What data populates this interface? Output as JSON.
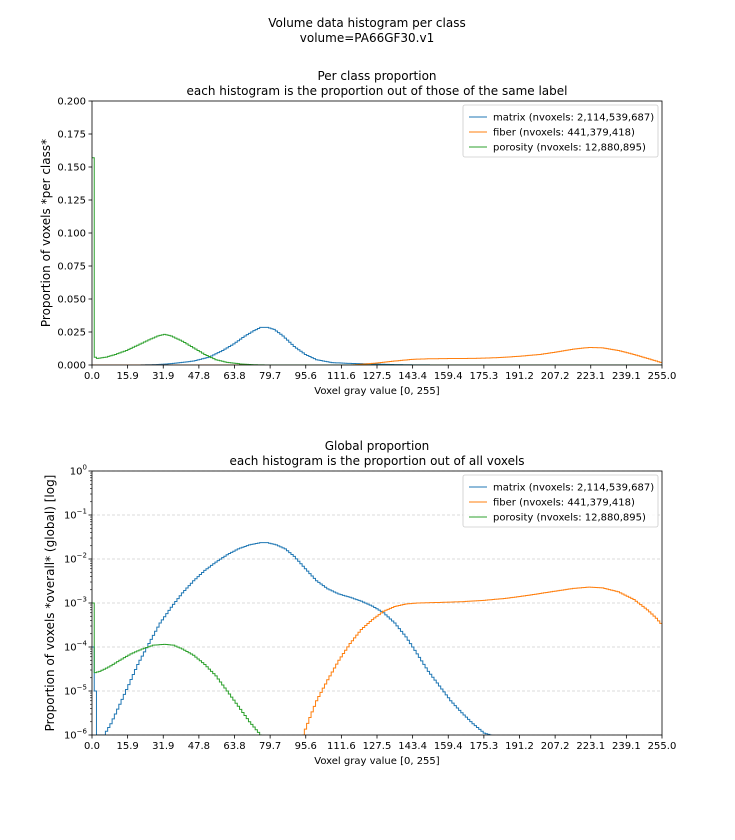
{
  "figure": {
    "suptitle_line1": "Volume data histogram per class",
    "suptitle_line2": "volume=PA66GF30.v1"
  },
  "colors": {
    "matrix": "#1f77b4",
    "fiber": "#ff7f0e",
    "porosity": "#2ca02c"
  },
  "chart_data": [
    {
      "type": "line",
      "title_line1": "Per class proportion",
      "title_line2": "each histogram is the proportion out of those of the same label",
      "xlabel": "Voxel gray value [0, 255]",
      "ylabel": "Proportion of voxels *per class*",
      "xlim": [
        0,
        255
      ],
      "ylim": [
        0,
        0.2
      ],
      "yscale": "linear",
      "grid": false,
      "legend": "top-right",
      "xticks": [
        "0.0",
        "15.9",
        "31.9",
        "47.8",
        "63.8",
        "79.7",
        "95.6",
        "111.6",
        "127.5",
        "143.4",
        "159.4",
        "175.3",
        "191.2",
        "207.2",
        "223.1",
        "239.1",
        "255.0"
      ],
      "yticks": [
        "0.000",
        "0.025",
        "0.050",
        "0.075",
        "0.100",
        "0.125",
        "0.150",
        "0.175",
        "0.200"
      ],
      "series": [
        {
          "name": "matrix (nvoxels: 2,114,539,687)",
          "key": "matrix",
          "points": [
            [
              0,
              0
            ],
            [
              20,
              0
            ],
            [
              28,
              0.0003
            ],
            [
              35,
              0.001
            ],
            [
              45,
              0.003
            ],
            [
              52,
              0.006
            ],
            [
              58,
              0.011
            ],
            [
              63,
              0.016
            ],
            [
              68,
              0.022
            ],
            [
              72,
              0.026
            ],
            [
              75,
              0.0285
            ],
            [
              78,
              0.0285
            ],
            [
              81,
              0.027
            ],
            [
              85,
              0.022
            ],
            [
              90,
              0.014
            ],
            [
              95,
              0.008
            ],
            [
              100,
              0.004
            ],
            [
              107,
              0.0018
            ],
            [
              115,
              0.0012
            ],
            [
              125,
              0.0008
            ],
            [
              135,
              0.0003
            ],
            [
              145,
              0.0001
            ],
            [
              155,
              0
            ],
            [
              255,
              0
            ]
          ]
        },
        {
          "name": "fiber (nvoxels: 441,379,418)",
          "key": "fiber",
          "points": [
            [
              0,
              0
            ],
            [
              115,
              0
            ],
            [
              118,
              0.0003
            ],
            [
              122,
              0.0008
            ],
            [
              127,
              0.0015
            ],
            [
              132,
              0.0025
            ],
            [
              138,
              0.0035
            ],
            [
              143,
              0.0043
            ],
            [
              150,
              0.0047
            ],
            [
              160,
              0.0049
            ],
            [
              170,
              0.005
            ],
            [
              180,
              0.0055
            ],
            [
              190,
              0.0065
            ],
            [
              200,
              0.008
            ],
            [
              208,
              0.01
            ],
            [
              215,
              0.012
            ],
            [
              222,
              0.0133
            ],
            [
              228,
              0.013
            ],
            [
              235,
              0.011
            ],
            [
              242,
              0.008
            ],
            [
              248,
              0.005
            ],
            [
              252,
              0.003
            ],
            [
              255,
              0.0015
            ]
          ]
        },
        {
          "name": "porosity (nvoxels: 12,880,895)",
          "key": "porosity",
          "points": [
            [
              0,
              0.157
            ],
            [
              0.6,
              0.157
            ],
            [
              0.8,
              0.006
            ],
            [
              2,
              0.005
            ],
            [
              6,
              0.006
            ],
            [
              10,
              0.008
            ],
            [
              15,
              0.011
            ],
            [
              20,
              0.015
            ],
            [
              25,
              0.019
            ],
            [
              29,
              0.022
            ],
            [
              32,
              0.0232
            ],
            [
              35,
              0.022
            ],
            [
              40,
              0.018
            ],
            [
              45,
              0.013
            ],
            [
              50,
              0.008
            ],
            [
              55,
              0.004
            ],
            [
              60,
              0.002
            ],
            [
              66,
              0.0008
            ],
            [
              72,
              0.0002
            ],
            [
              76,
              5e-05
            ],
            [
              80,
              0
            ],
            [
              255,
              0
            ]
          ]
        }
      ]
    },
    {
      "type": "line",
      "title_line1": "Global proportion",
      "title_line2": "each histogram is the proportion out of all voxels",
      "xlabel": "Voxel gray value [0, 255]",
      "ylabel": "Proportion of voxels *overall* (global) [log]",
      "xlim": [
        0,
        255
      ],
      "ylim": [
        1e-06,
        1
      ],
      "yscale": "log",
      "grid": true,
      "legend": "top-right",
      "xticks": [
        "0.0",
        "15.9",
        "31.9",
        "47.8",
        "63.8",
        "79.7",
        "95.6",
        "111.6",
        "127.5",
        "143.4",
        "159.4",
        "175.3",
        "191.2",
        "207.2",
        "223.1",
        "239.1",
        "255.0"
      ],
      "yticks_exp": [
        "0",
        "-1",
        "-2",
        "-3",
        "-4",
        "-5",
        "-6"
      ],
      "ytick_base": "10",
      "series": [
        {
          "name": "matrix (nvoxels: 2,114,539,687)",
          "key": "matrix",
          "points": [
            [
              0,
              0.0001
            ],
            [
              1,
              1e-05
            ],
            [
              2,
              1e-06
            ],
            [
              5,
              1e-06
            ],
            [
              8,
              1.8e-06
            ],
            [
              12,
              5e-06
            ],
            [
              16,
              1.4e-05
            ],
            [
              20,
              4e-05
            ],
            [
              25,
              0.00012
            ],
            [
              30,
              0.00035
            ],
            [
              35,
              0.0008
            ],
            [
              40,
              0.0017
            ],
            [
              45,
              0.0032
            ],
            [
              50,
              0.0055
            ],
            [
              55,
              0.0085
            ],
            [
              60,
              0.0125
            ],
            [
              65,
              0.017
            ],
            [
              70,
              0.021
            ],
            [
              75,
              0.0235
            ],
            [
              78,
              0.0235
            ],
            [
              82,
              0.021
            ],
            [
              86,
              0.017
            ],
            [
              90,
              0.0115
            ],
            [
              95,
              0.006
            ],
            [
              100,
              0.0032
            ],
            [
              105,
              0.0021
            ],
            [
              110,
              0.0016
            ],
            [
              115,
              0.00135
            ],
            [
              120,
              0.0011
            ],
            [
              125,
              0.00085
            ],
            [
              130,
              0.0006
            ],
            [
              135,
              0.00035
            ],
            [
              140,
              0.00017
            ],
            [
              145,
              7e-05
            ],
            [
              150,
              2.8e-05
            ],
            [
              155,
              1.3e-05
            ],
            [
              160,
              6e-06
            ],
            [
              165,
              3.2e-06
            ],
            [
              170,
              1.8e-06
            ],
            [
              175,
              1.1e-06
            ],
            [
              178,
              1e-06
            ]
          ]
        },
        {
          "name": "fiber (nvoxels: 441,379,418)",
          "key": "fiber",
          "points": [
            [
              94,
              1e-06
            ],
            [
              97,
              2.5e-06
            ],
            [
              100,
              6e-06
            ],
            [
              105,
              1.8e-05
            ],
            [
              110,
              5e-05
            ],
            [
              115,
              0.00012
            ],
            [
              120,
              0.00025
            ],
            [
              125,
              0.00042
            ],
            [
              130,
              0.00065
            ],
            [
              135,
              0.00083
            ],
            [
              140,
              0.00095
            ],
            [
              145,
              0.001
            ],
            [
              155,
              0.00103
            ],
            [
              165,
              0.00107
            ],
            [
              175,
              0.00115
            ],
            [
              185,
              0.00128
            ],
            [
              195,
              0.0015
            ],
            [
              205,
              0.0018
            ],
            [
              215,
              0.00215
            ],
            [
              222,
              0.0023
            ],
            [
              228,
              0.0022
            ],
            [
              235,
              0.0018
            ],
            [
              242,
              0.0012
            ],
            [
              248,
              0.0007
            ],
            [
              252,
              0.00045
            ],
            [
              255,
              0.0003
            ]
          ]
        },
        {
          "name": "porosity (nvoxels: 12,880,895)",
          "key": "porosity",
          "points": [
            [
              0,
              0.001
            ],
            [
              0.6,
              0.001
            ],
            [
              0.8,
              2.6e-05
            ],
            [
              3,
              2.8e-05
            ],
            [
              7,
              3.5e-05
            ],
            [
              12,
              5e-05
            ],
            [
              17,
              7e-05
            ],
            [
              22,
              9e-05
            ],
            [
              27,
              0.00011
            ],
            [
              32,
              0.000115
            ],
            [
              36,
              0.00011
            ],
            [
              40,
              9e-05
            ],
            [
              45,
              6.5e-05
            ],
            [
              50,
              4e-05
            ],
            [
              55,
              2.2e-05
            ],
            [
              60,
              1e-05
            ],
            [
              65,
              4.5e-06
            ],
            [
              70,
              2e-06
            ],
            [
              75,
              1e-06
            ]
          ]
        }
      ]
    }
  ]
}
